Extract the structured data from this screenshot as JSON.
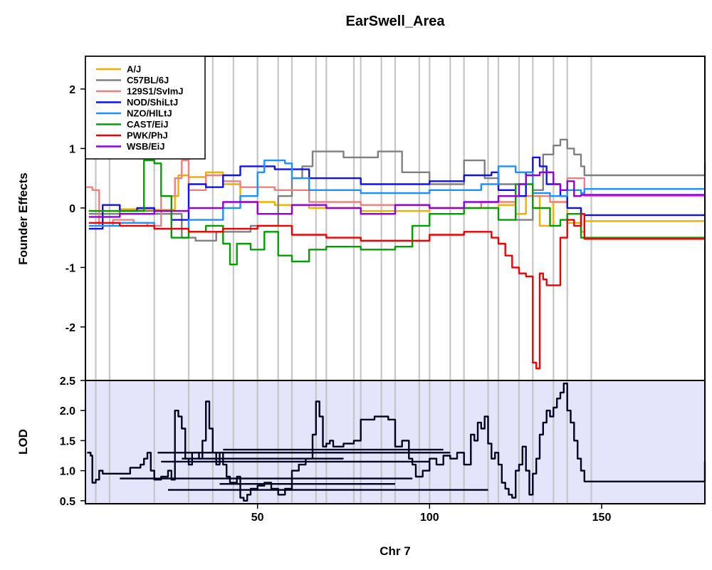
{
  "chart_data": {
    "title": "EarSwell_Area",
    "xlabel": "Chr 7",
    "xlim": [
      0,
      180
    ],
    "x_ticks": [
      50,
      100,
      150
    ],
    "x_grid": [
      3,
      7,
      20,
      30,
      37,
      43,
      50,
      56,
      60,
      67,
      70,
      78,
      80,
      86,
      90,
      97,
      100,
      106,
      110,
      117,
      120,
      126,
      130,
      136,
      140,
      147
    ],
    "panels": [
      {
        "id": "effects",
        "type": "line",
        "ylabel": "Founder Effects",
        "ylim": [
          -2.9,
          2.55
        ],
        "y_ticks": [
          -2,
          -1,
          0,
          1,
          2
        ],
        "background": "#ffffff",
        "legend": {
          "position": "top-left",
          "entries": [
            {
              "label": "A/J",
              "color": "#F0B000"
            },
            {
              "label": "C57BL/6J",
              "color": "#808080"
            },
            {
              "label": "129S1/SvImJ",
              "color": "#F08080"
            },
            {
              "label": "NOD/ShiLtJ",
              "color": "#1010F0"
            },
            {
              "label": "NZO/HlLtJ",
              "color": "#1E90FF"
            },
            {
              "label": "CAST/EiJ",
              "color": "#00A000"
            },
            {
              "label": "PWK/PhJ",
              "color": "#F00000"
            },
            {
              "label": "WSB/EiJ",
              "color": "#9000E0"
            }
          ]
        },
        "series": [
          {
            "name": "A/J",
            "color": "#F0B000",
            "x": [
              1,
              10,
              20,
              26,
              27,
              30,
              35,
              40,
              45,
              55,
              65,
              80,
              100,
              120,
              125,
              128,
              132,
              136,
              140,
              144,
              145,
              180
            ],
            "y": [
              -0.05,
              -0.02,
              -0.03,
              0.2,
              0.55,
              0.52,
              0.6,
              0.4,
              0.1,
              0.05,
              0.0,
              -0.05,
              0.0,
              0.05,
              -0.1,
              0.2,
              -0.3,
              0.1,
              -0.25,
              -0.4,
              -0.22,
              -0.22
            ]
          },
          {
            "name": "C57BL/6J",
            "color": "#808080",
            "x": [
              1,
              10,
              20,
              28,
              32,
              38,
              48,
              56,
              60,
              63,
              66,
              75,
              85,
              92,
              100,
              110,
              116,
              118,
              120,
              125,
              130,
              133,
              136,
              138,
              140,
              142,
              144,
              145,
              180
            ],
            "y": [
              -0.1,
              -0.05,
              -0.1,
              -0.5,
              -0.55,
              -0.4,
              -0.3,
              0.2,
              0.5,
              0.7,
              0.95,
              0.85,
              0.95,
              0.6,
              0.4,
              0.8,
              0.5,
              0.5,
              0.4,
              -0.2,
              0.3,
              0.9,
              1.05,
              1.15,
              1.0,
              0.9,
              0.7,
              0.55,
              0.75
            ]
          },
          {
            "name": "129S1/SvImJ",
            "color": "#F08080",
            "x": [
              0,
              2,
              4,
              8,
              14,
              18,
              22,
              26,
              28,
              30,
              35,
              40,
              45,
              55,
              65,
              80,
              100,
              115,
              125,
              135,
              140,
              145,
              180
            ],
            "y": [
              0.35,
              0.3,
              -0.3,
              -0.2,
              -0.25,
              -0.3,
              0.2,
              0.5,
              0.8,
              0.3,
              0.55,
              0.45,
              0.35,
              0.3,
              0.1,
              0.05,
              0.0,
              0.1,
              0.2,
              0.1,
              0.5,
              0.2,
              0.1
            ]
          },
          {
            "name": "NOD/ShiLtJ",
            "color": "#1010F0",
            "x": [
              1,
              5,
              10,
              15,
              20,
              25,
              30,
              35,
              40,
              45,
              55,
              65,
              80,
              100,
              110,
              118,
              120,
              125,
              128,
              130,
              132,
              134,
              138,
              140,
              144,
              145,
              180
            ],
            "y": [
              -0.35,
              0.05,
              -0.05,
              0.0,
              -0.05,
              -0.2,
              0.4,
              0.35,
              0.55,
              0.7,
              0.65,
              0.5,
              0.4,
              0.45,
              0.55,
              0.6,
              0.3,
              0.2,
              0.6,
              0.85,
              0.7,
              0.4,
              0.2,
              0.0,
              -0.1,
              -0.12,
              -0.12
            ]
          },
          {
            "name": "NZO/HlLtJ",
            "color": "#1E90FF",
            "x": [
              1,
              10,
              20,
              30,
              40,
              45,
              50,
              52,
              58,
              60,
              65,
              80,
              100,
              115,
              120,
              125,
              130,
              135,
              140,
              144,
              145,
              180
            ],
            "y": [
              -0.3,
              -0.25,
              -0.35,
              -0.2,
              0.0,
              0.2,
              0.6,
              0.8,
              0.75,
              0.5,
              0.3,
              0.25,
              0.3,
              0.4,
              0.7,
              0.6,
              0.25,
              0.2,
              0.3,
              0.25,
              0.32,
              0.32
            ]
          },
          {
            "name": "CAST/EiJ",
            "color": "#00A000",
            "x": [
              1,
              10,
              16,
              17,
              20,
              22,
              25,
              30,
              35,
              40,
              42,
              44,
              48,
              52,
              56,
              60,
              65,
              70,
              80,
              90,
              95,
              100,
              110,
              120,
              125,
              130,
              135,
              138,
              140,
              144,
              145,
              180
            ],
            "y": [
              -0.05,
              -0.05,
              -0.05,
              0.8,
              0.75,
              0.2,
              -0.5,
              -0.4,
              -0.3,
              -0.6,
              -0.95,
              -0.6,
              -0.7,
              -0.4,
              -0.8,
              -0.9,
              -0.7,
              -0.65,
              -0.7,
              -0.65,
              -0.3,
              -0.1,
              0.0,
              -0.2,
              0.4,
              0.0,
              -0.3,
              -0.2,
              -0.1,
              -0.5,
              -0.5,
              -0.5
            ]
          },
          {
            "name": "PWK/PhJ",
            "color": "#F00000",
            "x": [
              1,
              10,
              20,
              30,
              40,
              50,
              60,
              70,
              80,
              100,
              110,
              118,
              120,
              122,
              124,
              126,
              128,
              130,
              131,
              132,
              133,
              134,
              136,
              138,
              140,
              142,
              144,
              145,
              180
            ],
            "y": [
              -0.25,
              -0.3,
              -0.35,
              -0.4,
              -0.35,
              -0.3,
              -0.45,
              -0.5,
              -0.55,
              -0.45,
              -0.4,
              -0.5,
              -0.6,
              -0.8,
              -1.0,
              -1.1,
              -1.15,
              -2.6,
              -2.7,
              -1.1,
              -1.2,
              -1.3,
              -1.3,
              -0.5,
              -0.2,
              -0.3,
              -0.1,
              -0.52,
              -0.52
            ]
          },
          {
            "name": "WSB/EiJ",
            "color": "#9000E0",
            "x": [
              1,
              10,
              20,
              30,
              40,
              50,
              60,
              70,
              80,
              90,
              100,
              110,
              120,
              126,
              128,
              132,
              136,
              138,
              140,
              142,
              144,
              145,
              180
            ],
            "y": [
              -0.15,
              -0.1,
              -0.05,
              0.0,
              0.1,
              -0.1,
              0.05,
              0.0,
              -0.1,
              0.05,
              0.0,
              0.1,
              0.2,
              0.4,
              0.55,
              0.6,
              0.4,
              0.3,
              0.45,
              0.2,
              0.22,
              0.22,
              0.22
            ]
          }
        ]
      },
      {
        "id": "lod",
        "type": "line",
        "ylabel": "LOD",
        "ylim": [
          0.45,
          2.5
        ],
        "y_ticks": [
          0.5,
          1.0,
          1.5,
          2.0,
          2.5
        ],
        "y_tick_labels": [
          "0.5",
          "1.0",
          "1.5",
          "2.0",
          "2.5"
        ],
        "background": "#E4E4FA",
        "series": [
          {
            "name": "LOD",
            "color": "#000020",
            "x": [
              0.5,
              1.5,
              2,
              3,
              4,
              5,
              7,
              10,
              13,
              16,
              17,
              18,
              19,
              20,
              22,
              24,
              25,
              26,
              27,
              28,
              29,
              30,
              31,
              33,
              34,
              35,
              36,
              37,
              38,
              39,
              40,
              41,
              42,
              44,
              45,
              46,
              47,
              48,
              50,
              52,
              54,
              56,
              58,
              60,
              62,
              64,
              66,
              67,
              68,
              69,
              70,
              71,
              72,
              75,
              78,
              80,
              84,
              88,
              90,
              92,
              94,
              95,
              96,
              98,
              100,
              102,
              104,
              106,
              108,
              110,
              112,
              113,
              114,
              115,
              116,
              117,
              118,
              119,
              120,
              121,
              122,
              123,
              124,
              125,
              126,
              127,
              128,
              129,
              130,
              131,
              132,
              133,
              134,
              135,
              136,
              137,
              138,
              139,
              140,
              141,
              142,
              143,
              144,
              145,
              180
            ],
            "y": [
              1.3,
              1.25,
              0.8,
              0.85,
              1.0,
              0.95,
              0.95,
              0.95,
              1.05,
              1.1,
              1.2,
              1.3,
              1.0,
              0.85,
              0.9,
              1.0,
              0.85,
              2.0,
              1.9,
              1.7,
              1.2,
              1.1,
              1.3,
              1.2,
              1.5,
              2.15,
              1.7,
              1.3,
              1.1,
              1.3,
              1.1,
              0.9,
              0.8,
              0.9,
              0.55,
              0.5,
              0.6,
              0.7,
              0.75,
              0.8,
              0.7,
              0.6,
              0.7,
              1.0,
              1.1,
              1.2,
              1.6,
              2.15,
              1.9,
              1.4,
              1.45,
              1.5,
              1.4,
              1.45,
              1.5,
              1.85,
              1.9,
              1.85,
              1.4,
              1.5,
              1.2,
              1.1,
              0.9,
              1.0,
              1.2,
              1.1,
              1.25,
              1.2,
              1.3,
              1.1,
              1.6,
              1.5,
              1.8,
              1.7,
              1.9,
              1.45,
              1.2,
              1.3,
              1.1,
              0.8,
              0.7,
              0.6,
              0.55,
              1.0,
              1.1,
              1.4,
              1.0,
              0.6,
              0.95,
              1.2,
              1.6,
              1.8,
              2.0,
              1.9,
              2.05,
              2.2,
              2.3,
              2.45,
              2.0,
              1.8,
              1.5,
              1.2,
              1.0,
              0.82,
              1.15
            ]
          }
        ],
        "segments": [
          {
            "x": [
              21,
              106
            ],
            "y": 1.3
          },
          {
            "x": [
              40,
              104
            ],
            "y": 1.35
          },
          {
            "x": [
              28,
              75
            ],
            "y": 1.2
          },
          {
            "x": [
              22,
              100
            ],
            "y": 1.15
          },
          {
            "x": [
              10,
              95
            ],
            "y": 0.87
          },
          {
            "x": [
              39,
              90
            ],
            "y": 0.78
          },
          {
            "x": [
              24,
              117
            ],
            "y": 0.68
          }
        ]
      }
    ]
  }
}
